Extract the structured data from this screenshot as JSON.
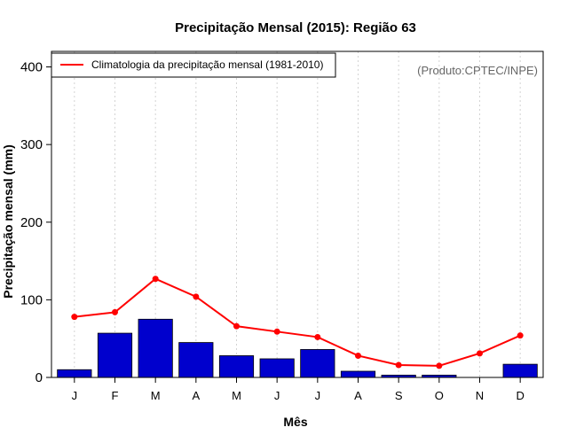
{
  "chart_data": {
    "type": "bar",
    "title": "Precipitação Mensal (2015): Região 63",
    "xlabel": "Mês",
    "ylabel": "Precipitação mensal (mm)",
    "ylim": [
      0,
      420
    ],
    "yticks": [
      0,
      100,
      200,
      300,
      400
    ],
    "categories": [
      "J",
      "F",
      "M",
      "A",
      "M",
      "J",
      "J",
      "A",
      "S",
      "O",
      "N",
      "D"
    ],
    "series": [
      {
        "name": "Precipitação mensal (2015)",
        "kind": "bar",
        "color": "#0000CD",
        "values": [
          10,
          57,
          75,
          45,
          28,
          24,
          36,
          8,
          3,
          3,
          0,
          17
        ]
      },
      {
        "name": "Climatologia da precipitação mensal (1981-2010)",
        "kind": "line",
        "color": "#FF0000",
        "values": [
          78,
          84,
          127,
          104,
          66,
          59,
          52,
          28,
          16,
          15,
          31,
          54
        ]
      }
    ],
    "legend": {
      "position": "top-left",
      "entries": [
        "Climatologia da precipitação mensal (1981-2010)"
      ]
    },
    "grid": "vertical-dotted",
    "annotation": "(Produto:CPTEC/INPE)"
  }
}
